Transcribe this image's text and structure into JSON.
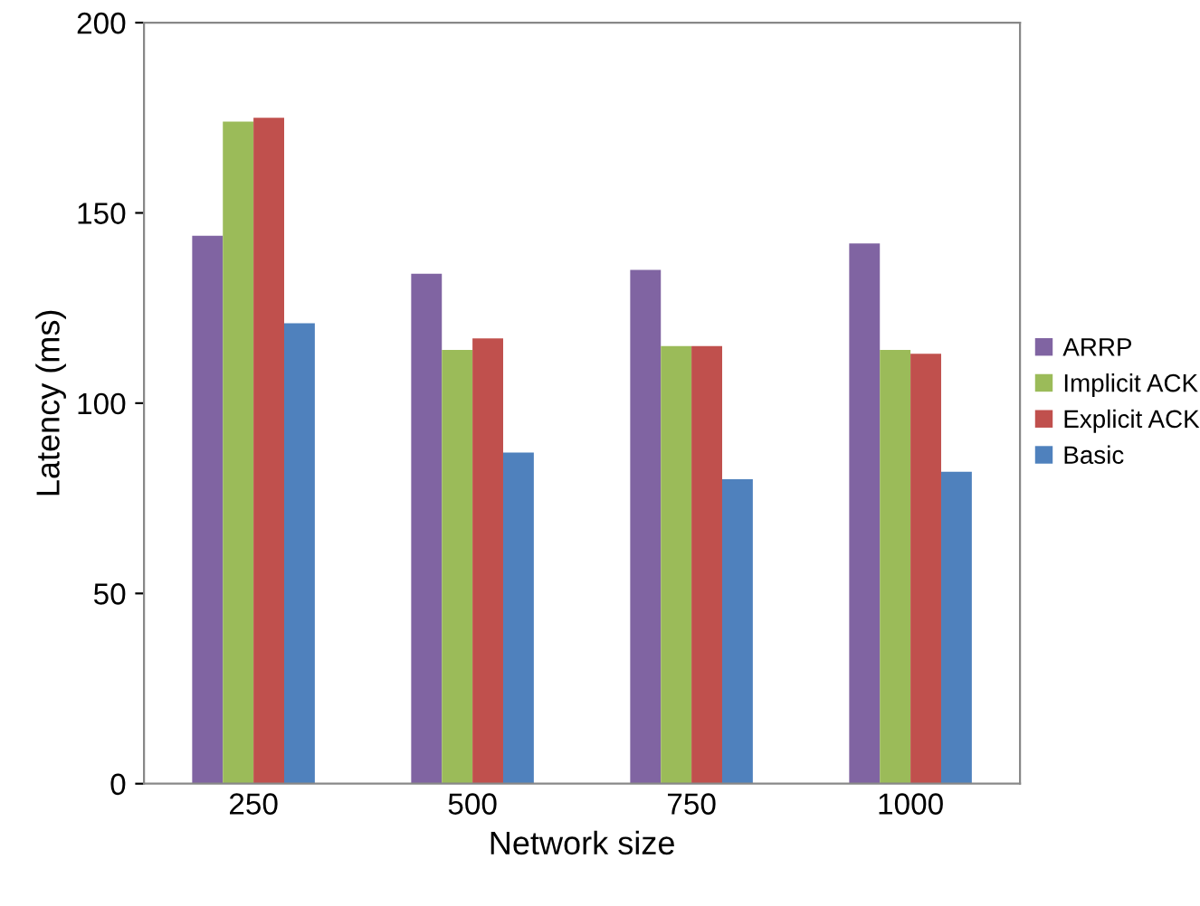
{
  "chart_data": {
    "type": "bar",
    "xlabel": "Network size",
    "ylabel": "Latency (ms)",
    "categories": [
      "250",
      "500",
      "750",
      "1000"
    ],
    "series": [
      {
        "name": "ARRP",
        "color": "#8064a2",
        "values": [
          144,
          134,
          135,
          142
        ]
      },
      {
        "name": "Implicit ACK",
        "color": "#9bbb59",
        "values": [
          174,
          114,
          115,
          114
        ]
      },
      {
        "name": "Explicit ACK",
        "color": "#c0504d",
        "values": [
          175,
          117,
          115,
          113
        ]
      },
      {
        "name": "Basic",
        "color": "#4f81bd",
        "values": [
          121,
          87,
          80,
          82
        ]
      }
    ],
    "ylim": [
      0,
      200
    ],
    "yticks": [
      0,
      50,
      100,
      150,
      200
    ],
    "grid": false,
    "legend": "right"
  }
}
